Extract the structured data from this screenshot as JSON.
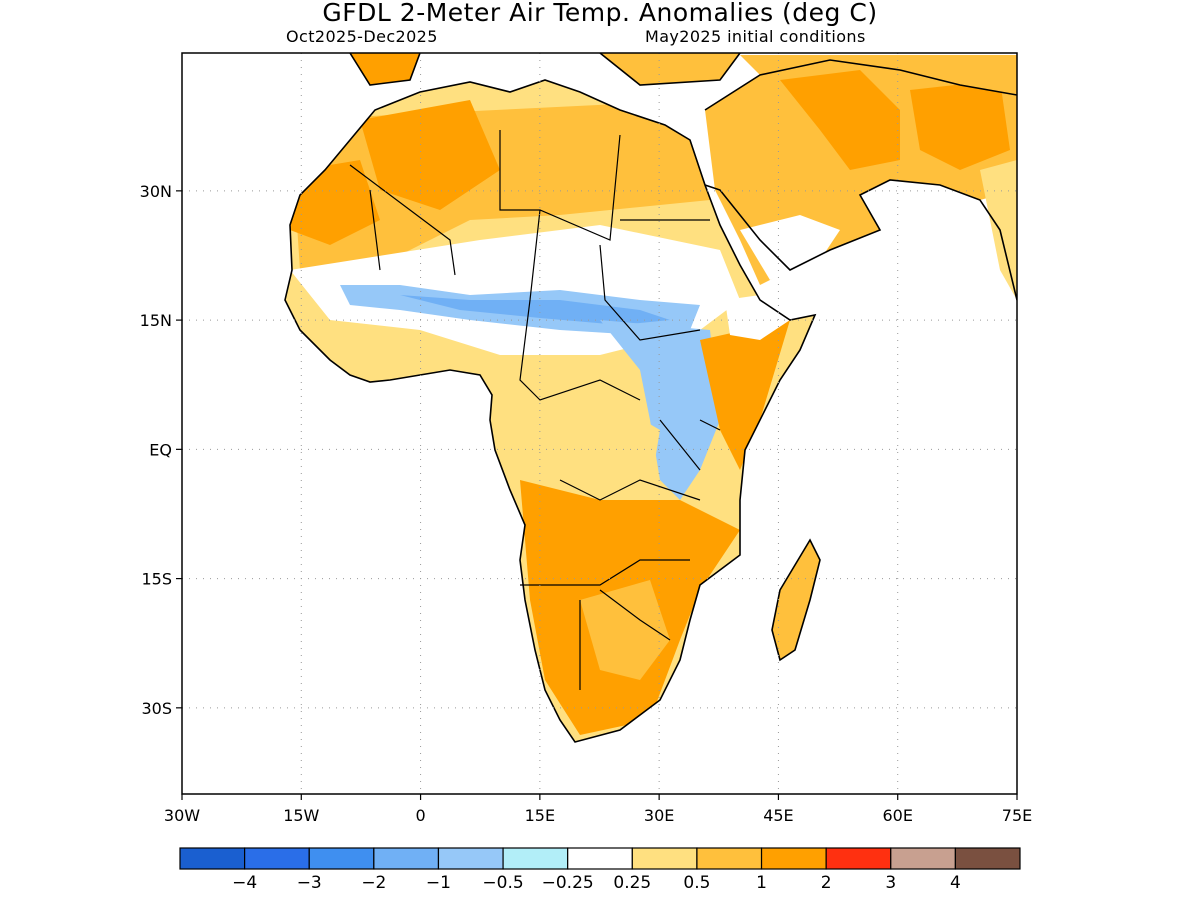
{
  "title": "GFDL 2-Meter Air Temp. Anomalies (deg C)",
  "subtitle_left": "Oct2025-Dec2025",
  "subtitle_right": "May2025 initial conditions",
  "map": {
    "projection": "equirectangular",
    "lon_range": [
      -30,
      75
    ],
    "lat_range": [
      -40,
      46
    ],
    "x_ticks": [
      {
        "lon": -30,
        "label": "30W"
      },
      {
        "lon": -15,
        "label": "15W"
      },
      {
        "lon": 0,
        "label": "0"
      },
      {
        "lon": 15,
        "label": "15E"
      },
      {
        "lon": 30,
        "label": "30E"
      },
      {
        "lon": 45,
        "label": "45E"
      },
      {
        "lon": 60,
        "label": "60E"
      },
      {
        "lon": 75,
        "label": "75E"
      }
    ],
    "y_ticks": [
      {
        "lat": 30,
        "label": "30N"
      },
      {
        "lat": 15,
        "label": "15N"
      },
      {
        "lat": 0,
        "label": "EQ"
      },
      {
        "lat": -15,
        "label": "15S"
      },
      {
        "lat": -30,
        "label": "30S"
      }
    ],
    "grid": "dotted"
  },
  "colorbar": {
    "colors": [
      "#1a5fd0",
      "#2a6ee8",
      "#3f8ff0",
      "#70b0f5",
      "#96c8f8",
      "#b2eef8",
      "#ffffff",
      "#ffe080",
      "#ffc03c",
      "#ffa000",
      "#ff3010",
      "#c8a090",
      "#7a5040"
    ],
    "labels": [
      "-4",
      "-3",
      "-2",
      "-1",
      "-0.5",
      "-0.25",
      "0.25",
      "0.5",
      "1",
      "2",
      "3",
      "4"
    ]
  },
  "anomaly_regions": [
    {
      "name": "sahara",
      "level": "1",
      "color": "#ffc03c"
    },
    {
      "name": "west-sahara",
      "level": "2",
      "color": "#ffa000"
    },
    {
      "name": "sahel-belt",
      "level": "-1",
      "color": "#70b0f5"
    },
    {
      "name": "east-africa-highlands",
      "level": "-0.5",
      "color": "#96c8f8"
    },
    {
      "name": "southern-africa",
      "level": "2",
      "color": "#ffa000"
    },
    {
      "name": "arabia",
      "level": "2",
      "color": "#ffa000"
    },
    {
      "name": "madagascar",
      "level": "1",
      "color": "#ffc03c"
    }
  ]
}
